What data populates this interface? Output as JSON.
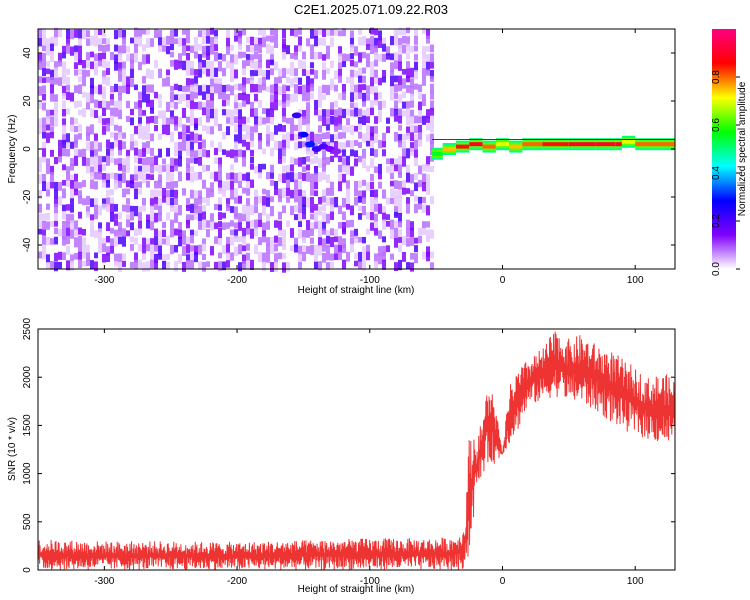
{
  "title": "C2E1.2025.071.09.22.R03",
  "chart_data": [
    {
      "type": "heatmap",
      "xlabel": "Height of straight line (km)",
      "ylabel": "Frequency (Hz)",
      "xlim": [
        -350,
        130
      ],
      "ylim": [
        -50,
        50
      ],
      "xticks": [
        -300,
        -200,
        -100,
        0,
        100
      ],
      "yticks": [
        -40,
        -20,
        0,
        20,
        40
      ],
      "colorbar": {
        "label": "Normalized spectral amplitude",
        "range": [
          0,
          1
        ],
        "ticks": [
          0.0,
          0.2,
          0.4,
          0.6,
          0.8
        ],
        "tick_labels": [
          "0.0",
          "0.2",
          "0.4",
          "0.6",
          "0.8"
        ],
        "colormap": [
          "#ffffff",
          "#8000ff",
          "#0000ff",
          "#00ffff",
          "#00ff00",
          "#ffff00",
          "#ff0000",
          "#ff0080"
        ]
      },
      "noise_region_x": [
        -350,
        -53
      ],
      "noise_level": 0.15,
      "carrier": {
        "x": [
          -53,
          -45,
          -35,
          -25,
          -15,
          -5,
          5,
          15,
          30,
          50,
          70,
          85,
          90,
          100,
          130
        ],
        "frequency": [
          -2,
          0,
          1,
          2,
          1,
          2,
          1,
          2,
          2,
          2,
          2,
          2,
          3,
          2,
          2
        ],
        "amplitude": [
          0.55,
          0.75,
          0.85,
          0.9,
          0.8,
          0.7,
          0.75,
          0.8,
          0.85,
          0.9,
          0.9,
          0.9,
          0.7,
          0.8,
          0.75
        ]
      },
      "feature": {
        "x": [
          -155,
          -150,
          -145,
          -140,
          -135,
          -130,
          -125
        ],
        "frequency": [
          14,
          6,
          2,
          0,
          1,
          0,
          -1
        ],
        "amplitude": [
          0.45,
          0.55,
          0.6,
          0.45,
          0.4,
          0.3,
          0.25
        ]
      },
      "grid": false
    },
    {
      "type": "line",
      "xlabel": "Height of straight line (km)",
      "ylabel": "SNR (10 * v/v)",
      "xlim": [
        -350,
        130
      ],
      "ylim": [
        0,
        2500
      ],
      "xticks": [
        -300,
        -200,
        -100,
        0,
        100
      ],
      "yticks": [
        0,
        500,
        1000,
        1500,
        2000,
        2500
      ],
      "color": "#ee3333",
      "envelope": {
        "x": [
          -350,
          -300,
          -250,
          -200,
          -150,
          -100,
          -60,
          -40,
          -30,
          -28,
          -25,
          -22,
          -20,
          -15,
          -10,
          -5,
          0,
          5,
          10,
          20,
          30,
          40,
          50,
          60,
          70,
          80,
          90,
          100,
          110,
          120,
          130
        ],
        "low": [
          0,
          0,
          0,
          0,
          0,
          0,
          0,
          0,
          0,
          80,
          100,
          500,
          800,
          1000,
          1100,
          1100,
          1200,
          1300,
          1400,
          1700,
          1750,
          1800,
          1750,
          1700,
          1650,
          1550,
          1450,
          1400,
          1350,
          1300,
          1300
        ],
        "high": [
          320,
          300,
          300,
          290,
          310,
          330,
          330,
          340,
          400,
          600,
          1400,
          1500,
          1300,
          1600,
          2000,
          1700,
          1200,
          1900,
          2050,
          2200,
          2300,
          2500,
          2400,
          2450,
          2350,
          2300,
          2200,
          2100,
          2000,
          2050,
          2000
        ]
      },
      "grid": false
    }
  ]
}
